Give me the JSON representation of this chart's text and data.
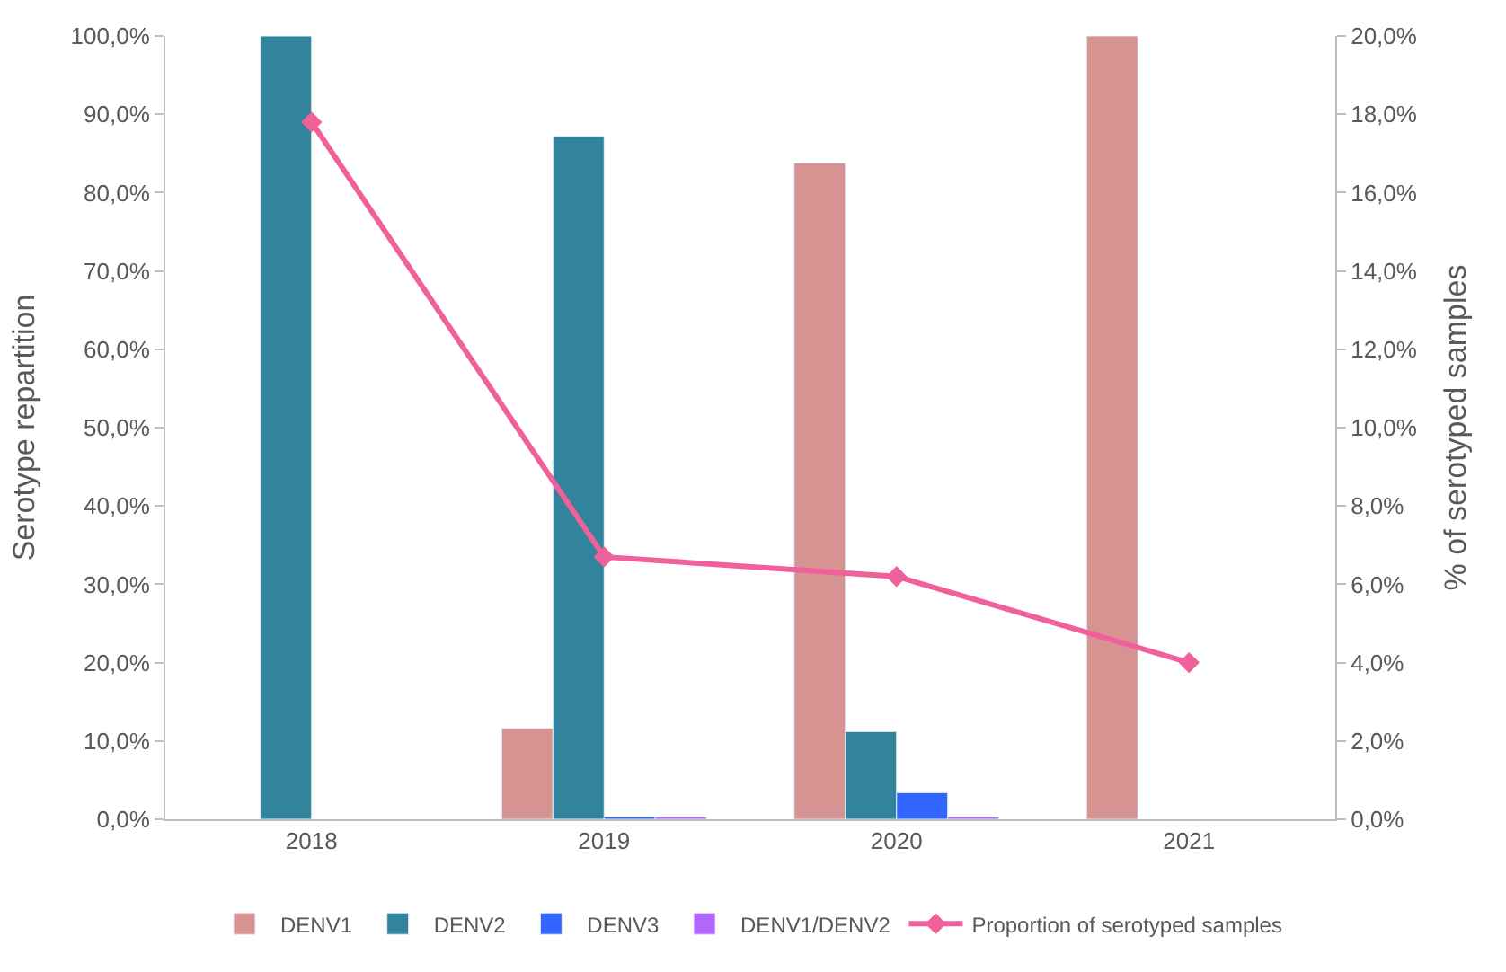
{
  "chart_data": {
    "type": "bar",
    "categories": [
      "2018",
      "2019",
      "2020",
      "2021"
    ],
    "ylabel": "Serotype repartition",
    "y2label": "% of serotyped samples",
    "ylim": [
      0,
      100
    ],
    "yticks": [
      {
        "value": 0,
        "label": "0,0%"
      },
      {
        "value": 10,
        "label": "10,0%"
      },
      {
        "value": 20,
        "label": "20,0%"
      },
      {
        "value": 30,
        "label": "30,0%"
      },
      {
        "value": 40,
        "label": "40,0%"
      },
      {
        "value": 50,
        "label": "50,0%"
      },
      {
        "value": 60,
        "label": "60,0%"
      },
      {
        "value": 70,
        "label": "70,0%"
      },
      {
        "value": 80,
        "label": "80,0%"
      },
      {
        "value": 90,
        "label": "90,0%"
      },
      {
        "value": 100,
        "label": "100,0%"
      }
    ],
    "y2lim": [
      0,
      20
    ],
    "y2ticks": [
      {
        "value": 0,
        "label": "0,0%"
      },
      {
        "value": 2,
        "label": "2,0%"
      },
      {
        "value": 4,
        "label": "4,0%"
      },
      {
        "value": 6,
        "label": "6,0%"
      },
      {
        "value": 8,
        "label": "8,0%"
      },
      {
        "value": 10,
        "label": "10,0%"
      },
      {
        "value": 12,
        "label": "12,0%"
      },
      {
        "value": 14,
        "label": "14,0%"
      },
      {
        "value": 16,
        "label": "16,0%"
      },
      {
        "value": 18,
        "label": "18,0%"
      },
      {
        "value": 20,
        "label": "20,0%"
      }
    ],
    "series": [
      {
        "name": "DENV1",
        "color": "#d69391",
        "values": [
          null,
          11.6,
          83.8,
          100
        ]
      },
      {
        "name": "DENV2",
        "color": "#31849b",
        "values": [
          100,
          87.2,
          11.2,
          null
        ]
      },
      {
        "name": "DENV3",
        "color": "#3366ff",
        "values": [
          null,
          0.3,
          3.4,
          null
        ]
      },
      {
        "name": "DENV1/DENV2",
        "color": "#b266ff",
        "values": [
          null,
          0.3,
          0.3,
          null
        ]
      },
      {
        "name": "Proportion of serotyped samples",
        "type": "line",
        "axis": "y2",
        "color": "#f0609a",
        "marker": "diamond",
        "values": [
          17.8,
          6.7,
          6.2,
          4.0
        ]
      }
    ],
    "grid": false,
    "legend": "bottom"
  }
}
